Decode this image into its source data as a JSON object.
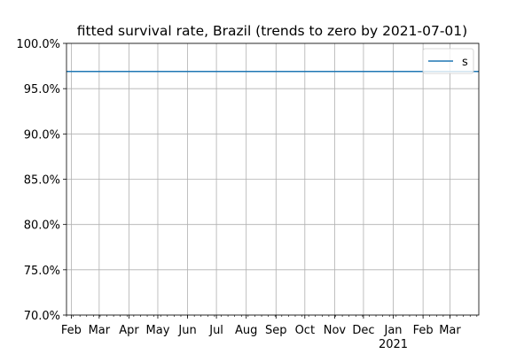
{
  "chart_data": {
    "type": "line",
    "title": "fitted survival rate, Brazil (trends to zero by 2021-07-01)",
    "xlabel": "",
    "ylabel": "",
    "x_range": [
      "2020-01-27",
      "2021-03-31"
    ],
    "ylim": [
      0.7,
      1.0
    ],
    "y_ticks": [
      0.7,
      0.75,
      0.8,
      0.85,
      0.9,
      0.95,
      1.0
    ],
    "y_tick_labels": [
      "70.0%",
      "75.0%",
      "80.0%",
      "85.0%",
      "90.0%",
      "95.0%",
      "100.0%"
    ],
    "x_ticks": [
      {
        "date": "2020-02-01",
        "label": "Feb"
      },
      {
        "date": "2020-03-01",
        "label": "Mar"
      },
      {
        "date": "2020-04-01",
        "label": "Apr"
      },
      {
        "date": "2020-05-01",
        "label": "May"
      },
      {
        "date": "2020-06-01",
        "label": "Jun"
      },
      {
        "date": "2020-07-01",
        "label": "Jul"
      },
      {
        "date": "2020-08-01",
        "label": "Aug"
      },
      {
        "date": "2020-09-01",
        "label": "Sep"
      },
      {
        "date": "2020-10-01",
        "label": "Oct"
      },
      {
        "date": "2020-11-01",
        "label": "Nov"
      },
      {
        "date": "2020-12-01",
        "label": "Dec"
      },
      {
        "date": "2021-01-01",
        "label": "Jan",
        "sublabel": "2021"
      },
      {
        "date": "2021-02-01",
        "label": "Feb"
      },
      {
        "date": "2021-03-01",
        "label": "Mar"
      }
    ],
    "grid": true,
    "legend_position": "top-right",
    "series": [
      {
        "name": "s",
        "color": "#1f77b4",
        "x": [
          "2020-01-27",
          "2021-03-31"
        ],
        "y": [
          0.969,
          0.969
        ]
      }
    ]
  }
}
